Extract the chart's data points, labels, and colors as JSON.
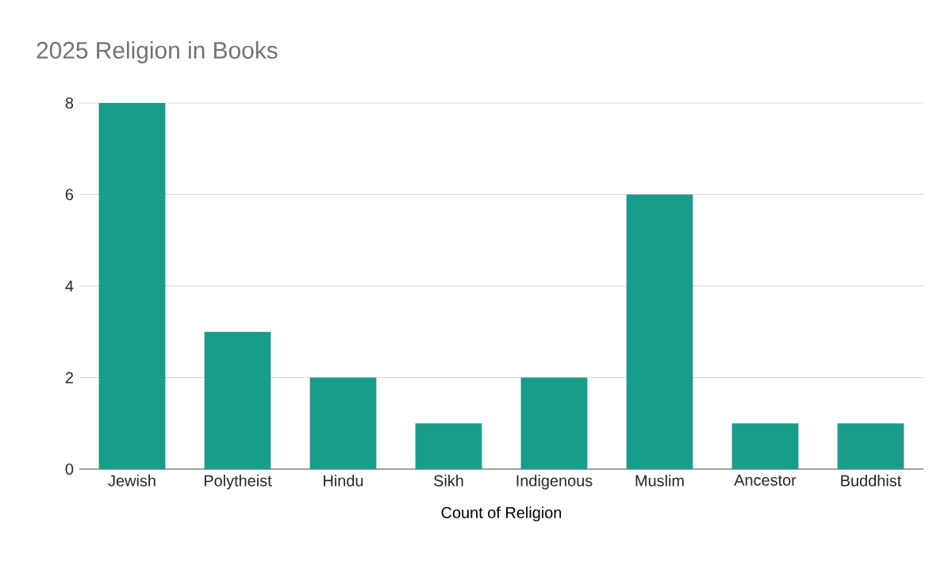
{
  "chart_data": {
    "type": "bar",
    "title": "2025 Religion in Books",
    "xlabel": "Count of Religion",
    "categories": [
      "Jewish",
      "Polytheist",
      "Hindu",
      "Sikh",
      "Indigenous",
      "Muslim",
      "Ancestor",
      "Buddhist"
    ],
    "values": [
      8,
      3,
      2,
      1,
      2,
      6,
      1,
      1
    ],
    "color": "#1a9c8a",
    "ylim": [
      0,
      8
    ],
    "yticks": [
      0,
      2,
      4,
      6,
      8
    ],
    "grid": "y"
  }
}
